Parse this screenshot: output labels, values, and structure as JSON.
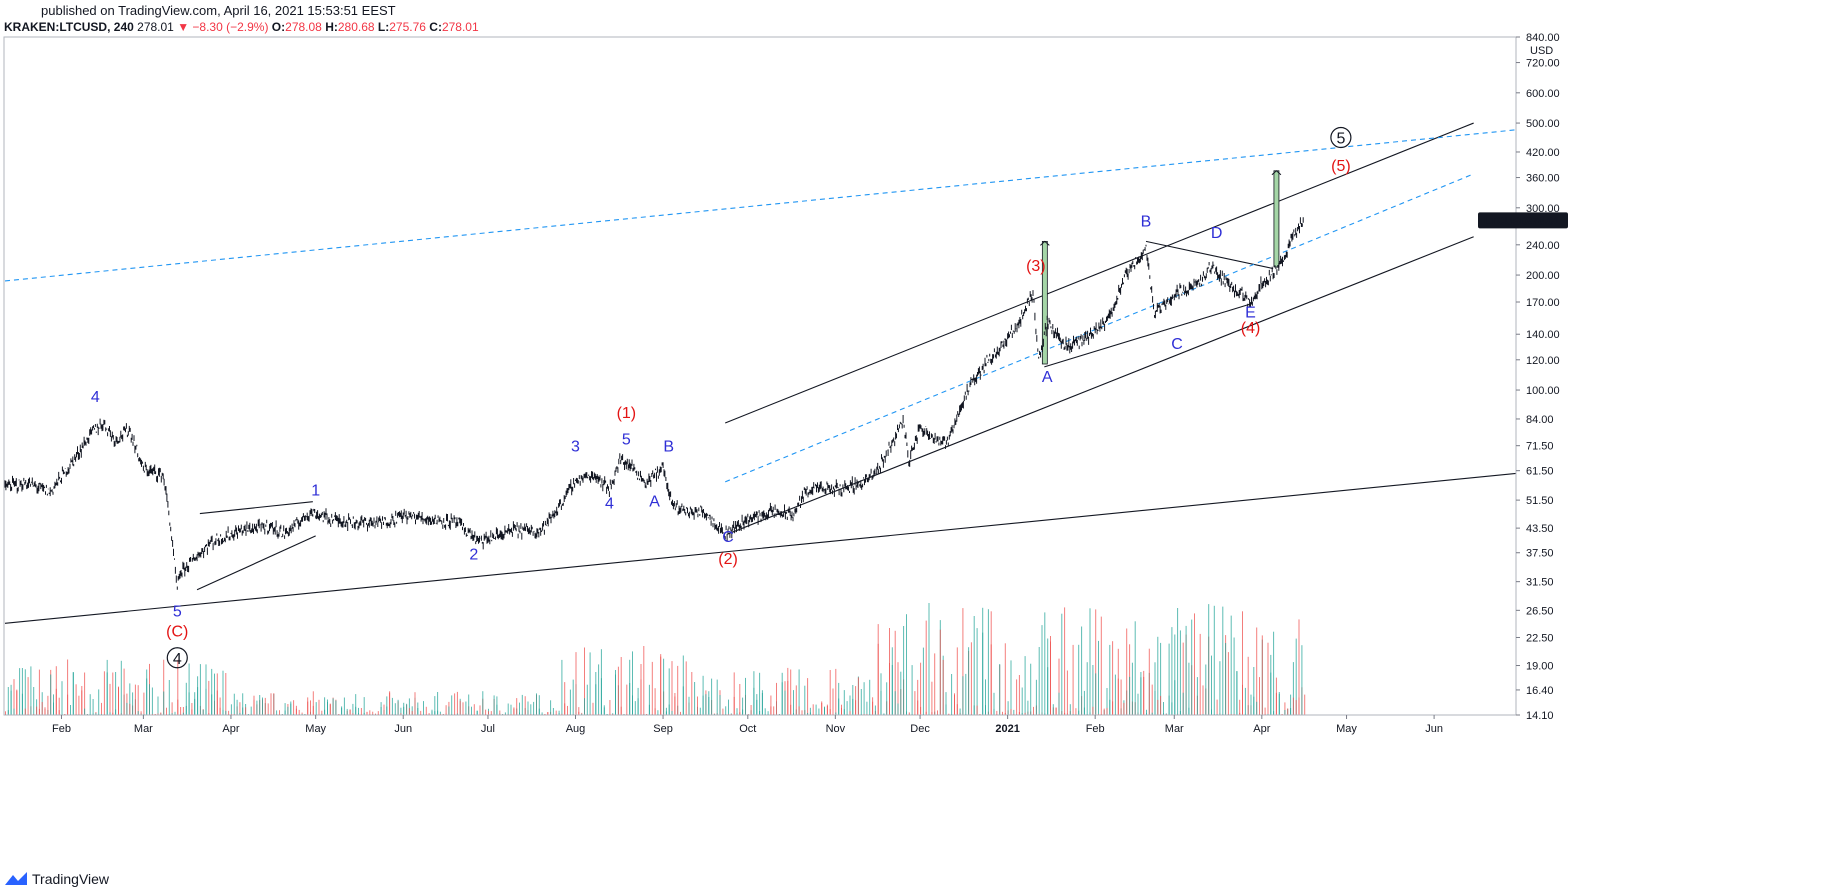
{
  "header": {
    "published": "published on TradingView.com, April 16, 2021 15:53:51 EEST",
    "symbol_line": "KRAKEN:LTCUSD, 240",
    "last": "278.01",
    "change": "▼ −8.30 (−2.9%)",
    "open_label": "O:",
    "open": "278.08",
    "high_label": "H:",
    "high": "280.68",
    "low_label": "L:",
    "low": "275.76",
    "close_label": "C:",
    "close": "278.01"
  },
  "footer": {
    "brand": "TradingView",
    "logo_icon": "tradingview-logo-icon"
  },
  "colors": {
    "up": "#26a69a",
    "down": "#ef5350",
    "wave_blue": "#2f2fd6",
    "wave_red": "#e31414",
    "channel": "#131722",
    "dashed": "#2196f3",
    "target_fill": "#a5d6a7"
  },
  "chart_data": {
    "type": "candlestick",
    "symbol": "LTCUSD",
    "exchange": "KRAKEN",
    "interval": "240",
    "y_scale": "log",
    "y_unit": "USD",
    "ylim": [
      14.1,
      840
    ],
    "y_ticks": [
      840,
      720,
      600,
      500,
      420,
      360,
      300,
      240,
      200,
      170,
      140,
      120,
      100,
      84.0,
      71.5,
      61.5,
      51.5,
      43.5,
      37.5,
      31.5,
      26.5,
      22.5,
      19.0,
      16.4,
      14.1
    ],
    "y_tick_labels": [
      "840.00",
      "720.00",
      "600.00",
      "500.00",
      "420.00",
      "360.00",
      "300.00",
      "240.00",
      "200.00",
      "170.00",
      "140.00",
      "120.00",
      "100.00",
      "84.00",
      "71.50",
      "61.50",
      "51.50",
      "43.50",
      "37.50",
      "31.50",
      "26.50",
      "22.50",
      "19.00",
      "16.40",
      "14.10"
    ],
    "axis_unit_label": "USD",
    "x_ticks": [
      "Feb",
      "Mar",
      "Apr",
      "May",
      "Jun",
      "Jul",
      "Aug",
      "Sep",
      "Oct",
      "Nov",
      "Dec",
      "2021",
      "Feb",
      "Mar",
      "Apr",
      "May",
      "Jun"
    ],
    "x_tick_dates": [
      "2020-02-01",
      "2020-03-01",
      "2020-04-01",
      "2020-05-01",
      "2020-06-01",
      "2020-07-01",
      "2020-08-01",
      "2020-09-01",
      "2020-10-01",
      "2020-11-01",
      "2020-12-01",
      "2021-01-01",
      "2021-02-01",
      "2021-03-01",
      "2021-04-01",
      "2021-05-01",
      "2021-06-01"
    ],
    "xlim": [
      "2020-01-12",
      "2021-06-30"
    ],
    "last_price_label": {
      "symbol": "LTCUSD",
      "value": "278.01"
    },
    "price_path": [
      [
        "2020-01-12",
        56
      ],
      [
        "2020-01-20",
        57
      ],
      [
        "2020-01-28",
        54
      ],
      [
        "2020-02-05",
        65
      ],
      [
        "2020-02-12",
        78
      ],
      [
        "2020-02-16",
        82
      ],
      [
        "2020-02-20",
        74
      ],
      [
        "2020-02-25",
        79
      ],
      [
        "2020-03-01",
        62
      ],
      [
        "2020-03-08",
        60
      ],
      [
        "2020-03-10",
        48
      ],
      [
        "2020-03-13",
        30
      ],
      [
        "2020-03-14",
        33
      ],
      [
        "2020-03-17",
        35
      ],
      [
        "2020-03-25",
        40
      ],
      [
        "2020-04-05",
        43
      ],
      [
        "2020-04-15",
        44
      ],
      [
        "2020-04-20",
        42
      ],
      [
        "2020-04-25",
        45
      ],
      [
        "2020-04-29",
        48
      ],
      [
        "2020-05-06",
        46
      ],
      [
        "2020-05-15",
        45
      ],
      [
        "2020-05-25",
        45
      ],
      [
        "2020-06-01",
        47
      ],
      [
        "2020-06-10",
        46
      ],
      [
        "2020-06-20",
        45
      ],
      [
        "2020-06-28",
        40
      ],
      [
        "2020-07-10",
        43
      ],
      [
        "2020-07-20",
        43
      ],
      [
        "2020-07-25",
        48
      ],
      [
        "2020-08-01",
        58
      ],
      [
        "2020-08-08",
        60
      ],
      [
        "2020-08-13",
        55
      ],
      [
        "2020-08-17",
        66
      ],
      [
        "2020-08-22",
        62
      ],
      [
        "2020-08-26",
        57
      ],
      [
        "2020-09-01",
        63
      ],
      [
        "2020-09-04",
        50
      ],
      [
        "2020-09-10",
        48
      ],
      [
        "2020-09-16",
        48
      ],
      [
        "2020-09-23",
        42
      ],
      [
        "2020-10-01",
        46
      ],
      [
        "2020-10-10",
        48
      ],
      [
        "2020-10-17",
        47
      ],
      [
        "2020-10-22",
        55
      ],
      [
        "2020-11-01",
        55
      ],
      [
        "2020-11-10",
        57
      ],
      [
        "2020-11-15",
        60
      ],
      [
        "2020-11-22",
        75
      ],
      [
        "2020-11-25",
        84
      ],
      [
        "2020-11-27",
        65
      ],
      [
        "2020-12-01",
        80
      ],
      [
        "2020-12-10",
        72
      ],
      [
        "2020-12-18",
        100
      ],
      [
        "2020-12-25",
        120
      ],
      [
        "2020-12-30",
        130
      ],
      [
        "2021-01-05",
        150
      ],
      [
        "2021-01-10",
        180
      ],
      [
        "2021-01-12",
        120
      ],
      [
        "2021-01-15",
        150
      ],
      [
        "2021-01-22",
        130
      ],
      [
        "2021-01-28",
        135
      ],
      [
        "2021-02-05",
        150
      ],
      [
        "2021-02-12",
        200
      ],
      [
        "2021-02-19",
        235
      ],
      [
        "2021-02-22",
        160
      ],
      [
        "2021-03-02",
        180
      ],
      [
        "2021-03-10",
        190
      ],
      [
        "2021-03-14",
        210
      ],
      [
        "2021-03-20",
        190
      ],
      [
        "2021-03-28",
        170
      ],
      [
        "2021-04-01",
        190
      ],
      [
        "2021-04-08",
        215
      ],
      [
        "2021-04-13",
        260
      ],
      [
        "2021-04-16",
        278
      ]
    ],
    "volume_profile": [
      {
        "range": [
          "2020-01-12",
          "2020-03-31"
        ],
        "level": 0.35
      },
      {
        "range": [
          "2020-04-01",
          "2020-07-25"
        ],
        "level": 0.15
      },
      {
        "range": [
          "2020-07-26",
          "2020-09-10"
        ],
        "level": 0.45
      },
      {
        "range": [
          "2020-09-11",
          "2020-11-15"
        ],
        "level": 0.3
      },
      {
        "range": [
          "2020-11-16",
          "2021-04-16"
        ],
        "level": 0.7
      }
    ],
    "wave_labels": [
      {
        "text": "4",
        "date": "2020-02-13",
        "price": 93,
        "color": "blue"
      },
      {
        "text": "5",
        "date": "2020-03-13",
        "price": 25.5,
        "color": "blue"
      },
      {
        "text": "(C)",
        "date": "2020-03-13",
        "price": 22.6,
        "color": "red"
      },
      {
        "text": "4",
        "date": "2020-03-13",
        "price": 19.2,
        "color": "black",
        "circled": true
      },
      {
        "text": "1",
        "date": "2020-05-01",
        "price": 53,
        "color": "blue"
      },
      {
        "text": "2",
        "date": "2020-06-26",
        "price": 36,
        "color": "blue"
      },
      {
        "text": "3",
        "date": "2020-08-01",
        "price": 69,
        "color": "blue"
      },
      {
        "text": "4",
        "date": "2020-08-13",
        "price": 49,
        "color": "blue"
      },
      {
        "text": "5",
        "date": "2020-08-19",
        "price": 72,
        "color": "blue"
      },
      {
        "text": "(1)",
        "date": "2020-08-19",
        "price": 84.5,
        "color": "red"
      },
      {
        "text": "A",
        "date": "2020-08-29",
        "price": 49.5,
        "color": "blue"
      },
      {
        "text": "B",
        "date": "2020-09-03",
        "price": 69,
        "color": "blue"
      },
      {
        "text": "C",
        "date": "2020-09-24",
        "price": 40,
        "color": "blue"
      },
      {
        "text": "(2)",
        "date": "2020-09-24",
        "price": 35,
        "color": "red"
      },
      {
        "text": "(3)",
        "date": "2021-01-11",
        "price": 205,
        "color": "red"
      },
      {
        "text": "A",
        "date": "2021-01-15",
        "price": 105,
        "color": "blue"
      },
      {
        "text": "B",
        "date": "2021-02-19",
        "price": 268,
        "color": "blue"
      },
      {
        "text": "C",
        "date": "2021-03-02",
        "price": 128,
        "color": "blue"
      },
      {
        "text": "D",
        "date": "2021-03-16",
        "price": 250,
        "color": "blue"
      },
      {
        "text": "E",
        "date": "2021-03-28",
        "price": 155,
        "color": "blue"
      },
      {
        "text": "(4)",
        "date": "2021-03-28",
        "price": 141,
        "color": "red"
      },
      {
        "text": "5",
        "date": "2021-04-29",
        "price": 442,
        "color": "black",
        "circled": true
      },
      {
        "text": "(5)",
        "date": "2021-04-29",
        "price": 375,
        "color": "red"
      }
    ],
    "trend_lines": [
      {
        "kind": "solid",
        "from": [
          "2020-01-12",
          24.5
        ],
        "to": [
          "2021-06-30",
          60.5
        ]
      },
      {
        "kind": "solid",
        "from": [
          "2020-09-23",
          82
        ],
        "to": [
          "2021-06-15",
          500
        ]
      },
      {
        "kind": "solid",
        "from": [
          "2020-09-24",
          42
        ],
        "to": [
          "2021-06-15",
          252
        ]
      },
      {
        "kind": "solid",
        "from": [
          "2020-03-21",
          47.5
        ],
        "to": [
          "2020-04-30",
          51
        ]
      },
      {
        "kind": "solid",
        "from": [
          "2020-03-20",
          30
        ],
        "to": [
          "2020-05-01",
          41.5
        ]
      },
      {
        "kind": "solid",
        "from": [
          "2021-01-14",
          115
        ],
        "to": [
          "2021-03-28",
          168
        ]
      },
      {
        "kind": "solid",
        "from": [
          "2021-02-19",
          245
        ],
        "to": [
          "2021-04-05",
          208
        ]
      },
      {
        "kind": "dashed",
        "from": [
          "2020-01-12",
          193
        ],
        "to": [
          "2021-06-30",
          480
        ]
      },
      {
        "kind": "dashed",
        "from": [
          "2020-09-23",
          57.5
        ],
        "to": [
          "2021-06-15",
          368
        ]
      }
    ],
    "target_bars": [
      {
        "date": "2021-01-14",
        "low": 117,
        "high": 245
      },
      {
        "date": "2021-04-06",
        "low": 210,
        "high": 375
      }
    ],
    "grid": false,
    "legend": "none"
  }
}
